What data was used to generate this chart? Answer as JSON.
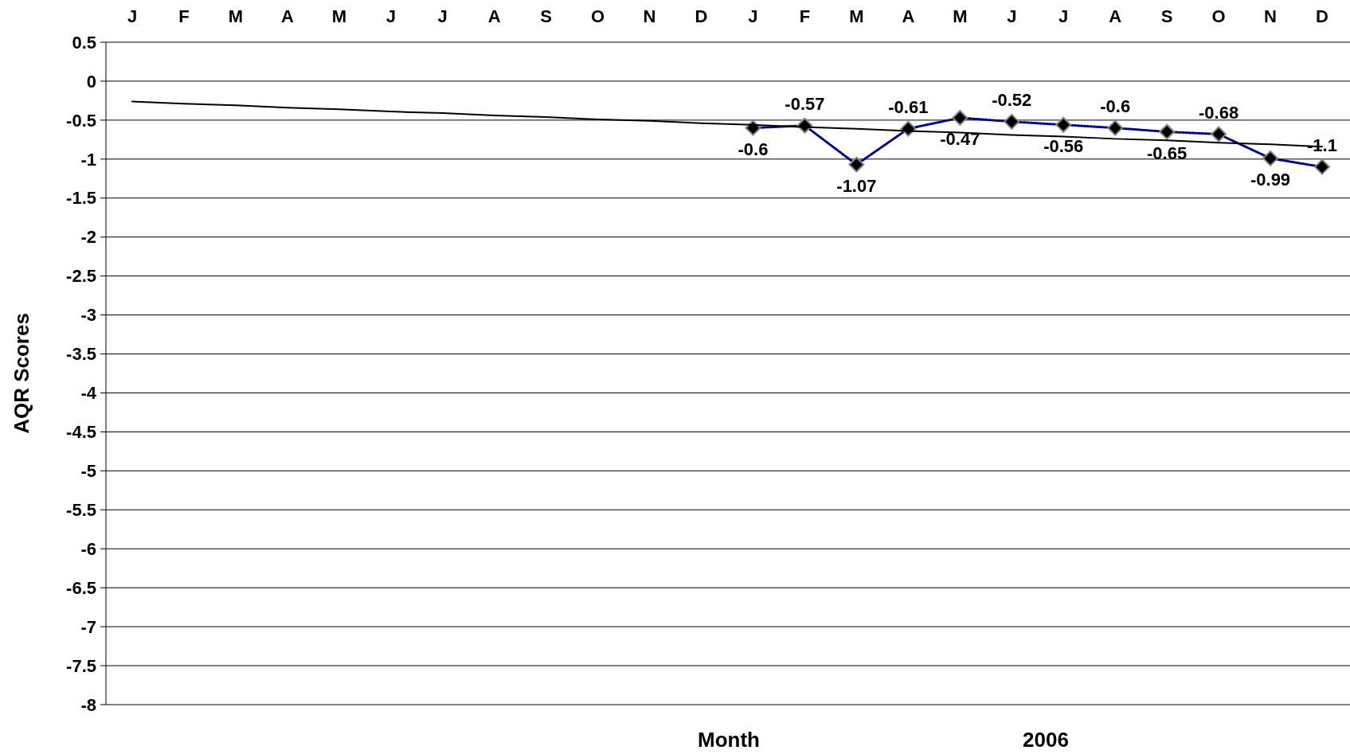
{
  "chart_data": {
    "type": "line",
    "ylabel": "AQR Scores",
    "xlabel": "Month",
    "annotations": [
      "2006"
    ],
    "categories": [
      "J",
      "F",
      "M",
      "A",
      "M",
      "J",
      "J",
      "A",
      "S",
      "O",
      "N",
      "D",
      "J",
      "F",
      "M",
      "A",
      "M",
      "J",
      "J",
      "A",
      "S",
      "O",
      "N",
      "D"
    ],
    "series": [
      {
        "color": "#000080",
        "values": [
          null,
          null,
          null,
          null,
          null,
          null,
          null,
          null,
          null,
          null,
          null,
          null,
          -0.6,
          -0.57,
          -1.07,
          -0.61,
          -0.47,
          -0.52,
          -0.56,
          -0.6,
          -0.65,
          -0.68,
          -0.99,
          -1.1
        ],
        "value_labels": [
          null,
          null,
          null,
          null,
          null,
          null,
          null,
          null,
          null,
          null,
          null,
          null,
          "-0.6",
          "-0.57",
          "-1.07",
          "-0.61",
          "-0.47",
          "-0.52",
          "-0.56",
          "-0.6",
          "-0.65",
          "-0.68",
          "-0.99",
          "-1.1"
        ],
        "marker": "diamond",
        "line_style": "dotted"
      },
      {
        "type": "line",
        "color": "#000000",
        "values": [
          -0.26,
          -0.29,
          -0.31,
          -0.34,
          -0.36,
          -0.39,
          -0.41,
          -0.44,
          -0.46,
          -0.49,
          -0.51,
          -0.54,
          -0.56,
          -0.59,
          -0.61,
          -0.64,
          -0.66,
          -0.69,
          -0.71,
          -0.74,
          -0.76,
          -0.79,
          -0.81,
          -0.84
        ],
        "marker": "none",
        "line_style": "solid"
      }
    ],
    "ylim": [
      -8,
      0.5
    ],
    "yticks": [
      0.5,
      0,
      -0.5,
      -1,
      -1.5,
      -2,
      -2.5,
      -3,
      -3.5,
      -4,
      -4.5,
      -5,
      -5.5,
      -6,
      -6.5,
      -7,
      -7.5,
      -8
    ],
    "grid": "y"
  }
}
